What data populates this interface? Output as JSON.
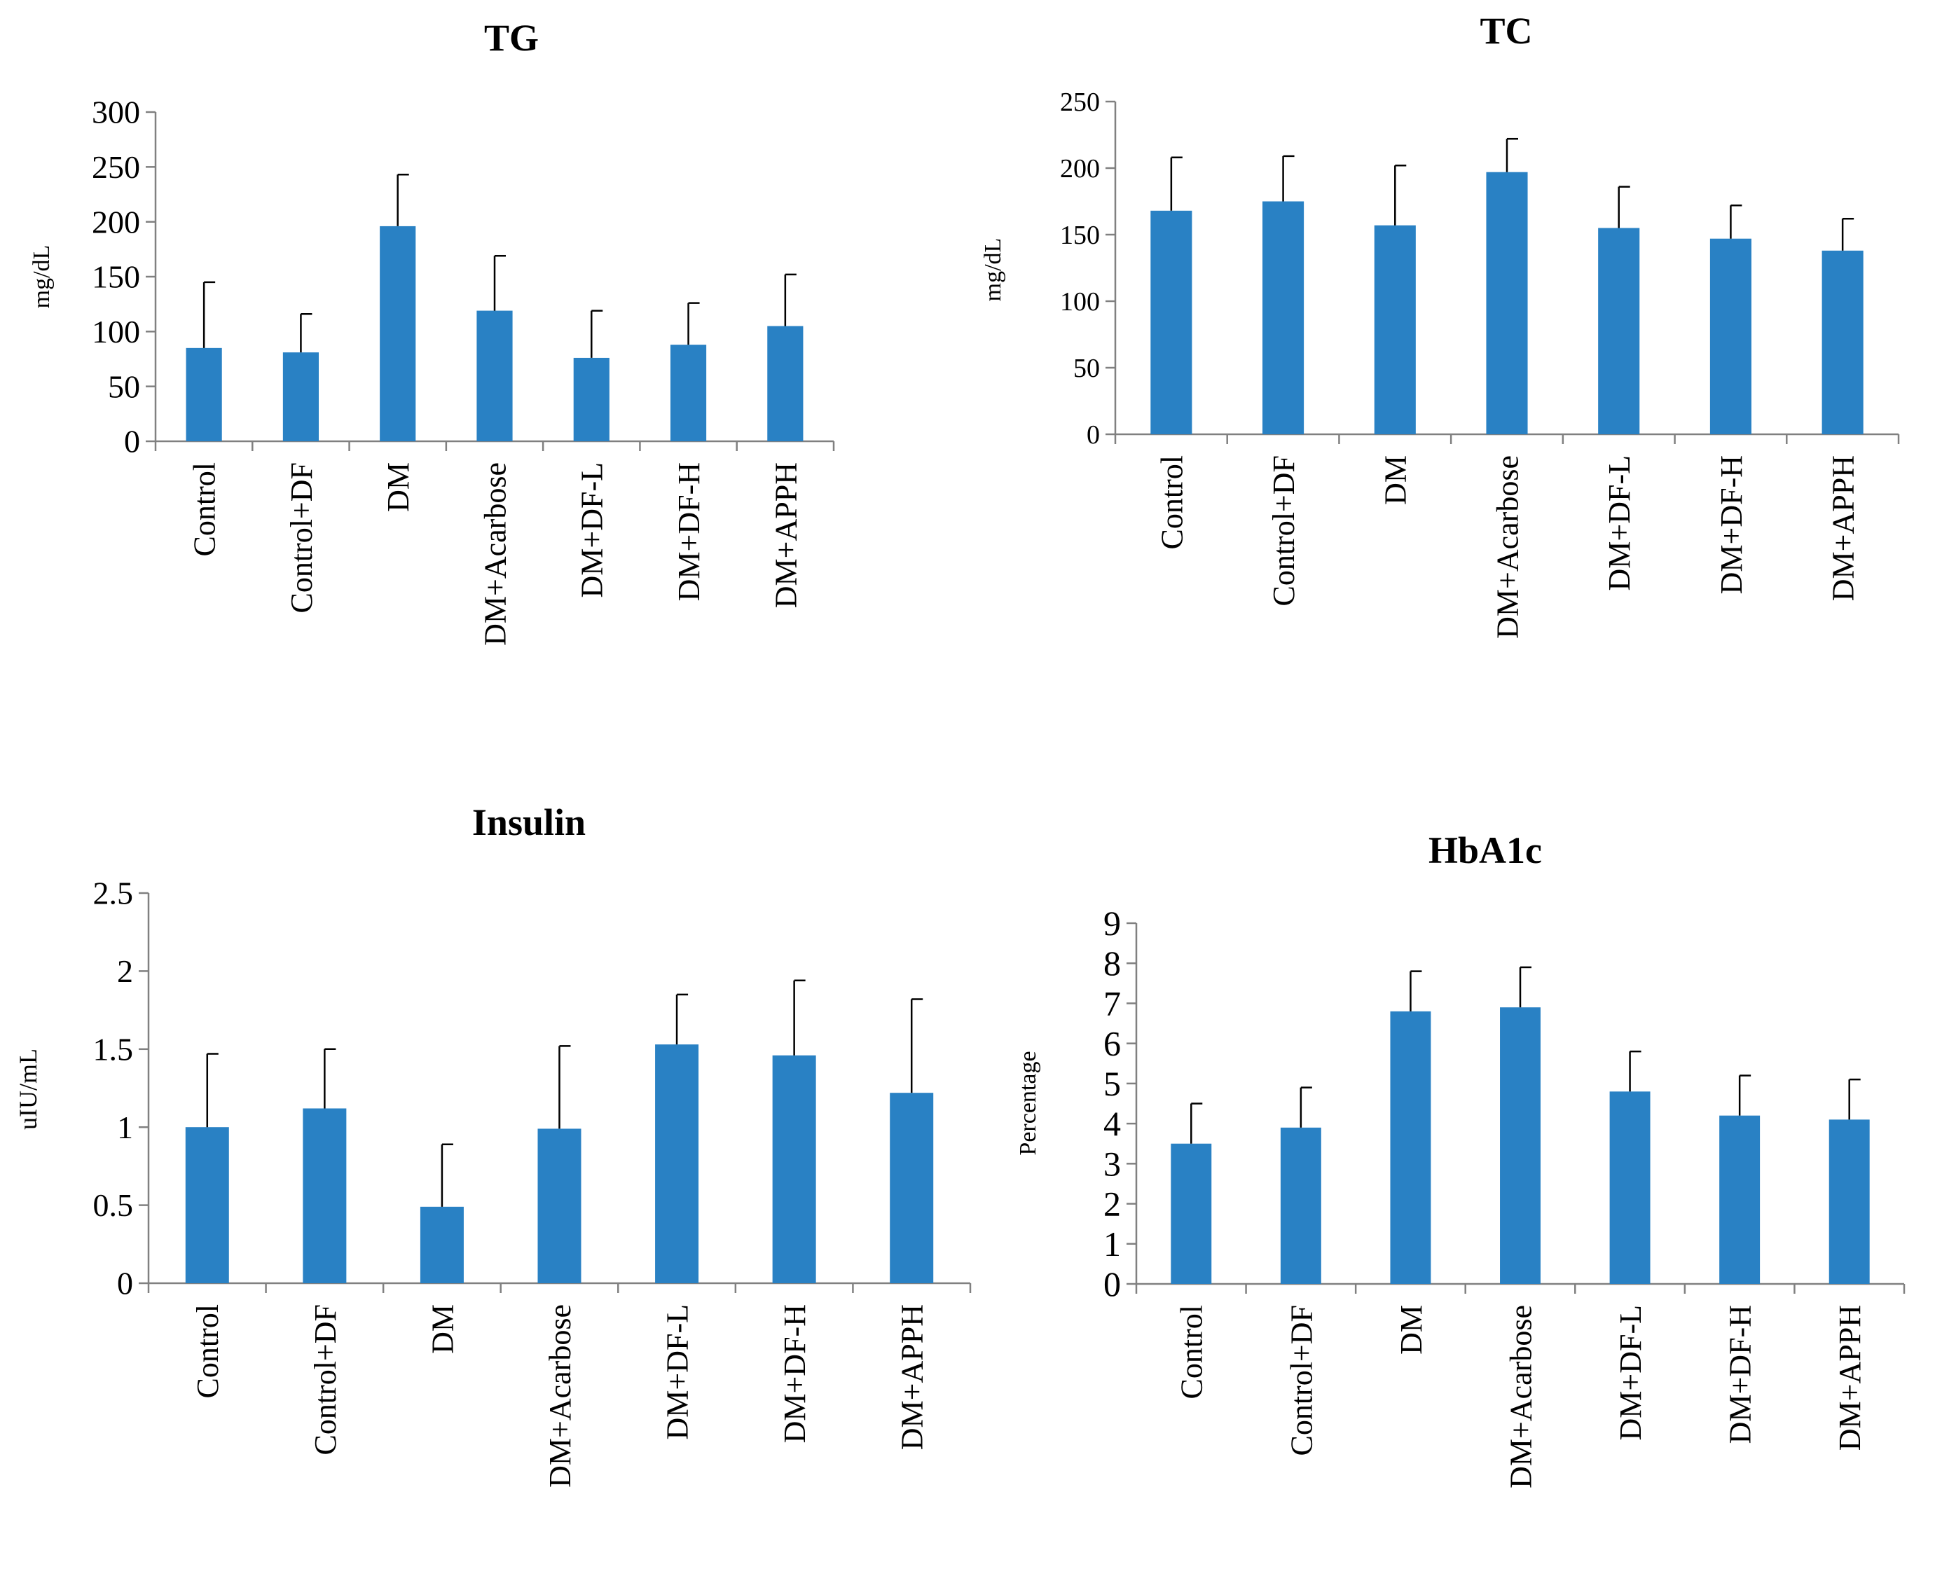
{
  "chart_data": [
    {
      "type": "bar",
      "title": "TG",
      "ylabel": "mg/dL",
      "xlabel": "",
      "ylim": [
        0,
        300
      ],
      "yticks": [
        0,
        50,
        100,
        150,
        200,
        250,
        300
      ],
      "categories": [
        "Control",
        "Control+DF",
        "DM",
        "DM+Acarbose",
        "DM+DF-L",
        "DM+DF-H",
        "DM+APPH"
      ],
      "values": [
        85,
        81,
        196,
        119,
        76,
        88,
        105
      ],
      "errors": [
        60,
        35,
        47,
        50,
        43,
        38,
        47
      ],
      "color": "#2981c4"
    },
    {
      "type": "bar",
      "title": "TC",
      "ylabel": "mg/dL",
      "xlabel": "",
      "ylim": [
        0,
        250
      ],
      "yticks": [
        0,
        50,
        100,
        150,
        200,
        250
      ],
      "categories": [
        "Control",
        "Control+DF",
        "DM",
        "DM+Acarbose",
        "DM+DF-L",
        "DM+DF-H",
        "DM+APPH"
      ],
      "values": [
        168,
        175,
        157,
        197,
        155,
        147,
        138
      ],
      "errors": [
        40,
        34,
        45,
        25,
        31,
        25,
        24
      ],
      "color": "#2981c4"
    },
    {
      "type": "bar",
      "title": "Insulin",
      "ylabel": "uIU/mL",
      "xlabel": "",
      "ylim": [
        0,
        2.5
      ],
      "yticks": [
        0,
        0.5,
        1,
        1.5,
        2,
        2.5
      ],
      "categories": [
        "Control",
        "Control+DF",
        "DM",
        "DM+Acarbose",
        "DM+DF-L",
        "DM+DF-H",
        "DM+APPH"
      ],
      "values": [
        1.0,
        1.12,
        0.49,
        0.99,
        1.53,
        1.46,
        1.22
      ],
      "errors": [
        0.47,
        0.38,
        0.4,
        0.53,
        0.32,
        0.48,
        0.6
      ],
      "color": "#2981c4"
    },
    {
      "type": "bar",
      "title": "HbA1c",
      "ylabel": "Percentage",
      "xlabel": "",
      "ylim": [
        0,
        9
      ],
      "yticks": [
        0,
        1,
        2,
        3,
        4,
        5,
        6,
        7,
        8,
        9
      ],
      "categories": [
        "Control",
        "Control+DF",
        "DM",
        "DM+Acarbose",
        "DM+DF-L",
        "DM+DF-H",
        "DM+APPH"
      ],
      "values": [
        3.5,
        3.9,
        6.8,
        6.9,
        4.8,
        4.2,
        4.1
      ],
      "errors": [
        1.0,
        1.0,
        1.0,
        1.0,
        1.0,
        1.0,
        1.0
      ],
      "color": "#2981c4"
    }
  ]
}
